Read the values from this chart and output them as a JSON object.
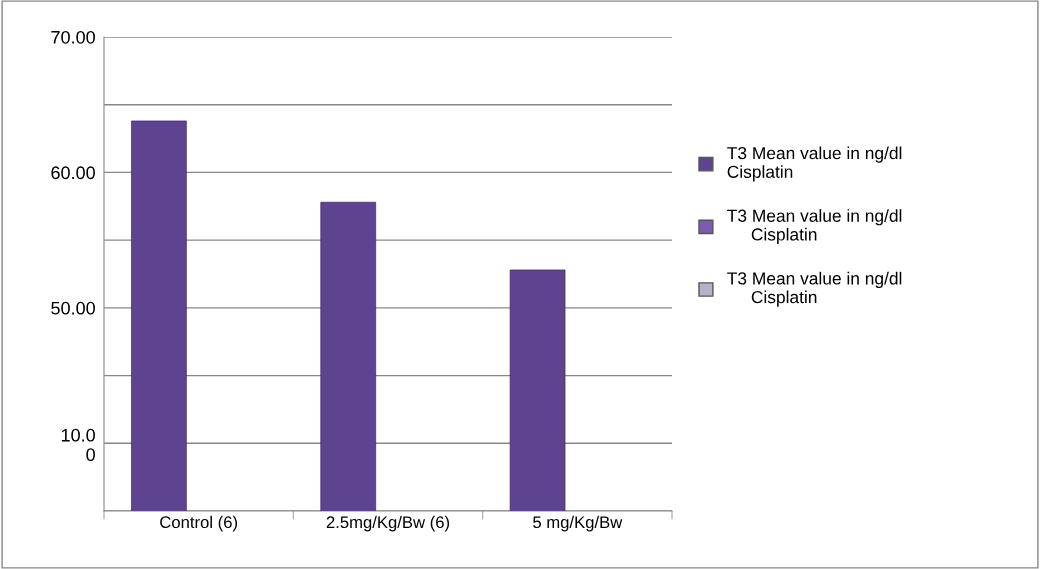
{
  "chart_data": {
    "type": "bar",
    "categories": [
      "Control (6)",
      "2.5mg/Kg/Bw (6)",
      "5 mg/Kg/Bw"
    ],
    "series": [
      {
        "name": "T3 Mean value in ng/dl\nCisplatin",
        "color": "#5e4390",
        "values": [
          63.8,
          57.8,
          52.8
        ]
      },
      {
        "name": "T3 Mean value in ng/dl\n     Cisplatin",
        "color": "#7b5cb0",
        "values": [
          null,
          null,
          null
        ]
      },
      {
        "name": "T3 Mean value in ng/dl\n     Cisplatin",
        "color": "#b8b0c8",
        "values": [
          null,
          null,
          null
        ]
      }
    ],
    "ylim": [
      35,
      70
    ],
    "yticks": [
      {
        "value": 35,
        "label": null
      },
      {
        "value": 40,
        "label": "10.0\n0"
      },
      {
        "value": 45,
        "label": null
      },
      {
        "value": 50,
        "label": "50.00"
      },
      {
        "value": 55,
        "label": null
      },
      {
        "value": 60,
        "label": "60.00"
      },
      {
        "value": 65,
        "label": null
      },
      {
        "value": 70,
        "label": "70.00"
      }
    ],
    "grid": "y",
    "legend": "right"
  }
}
